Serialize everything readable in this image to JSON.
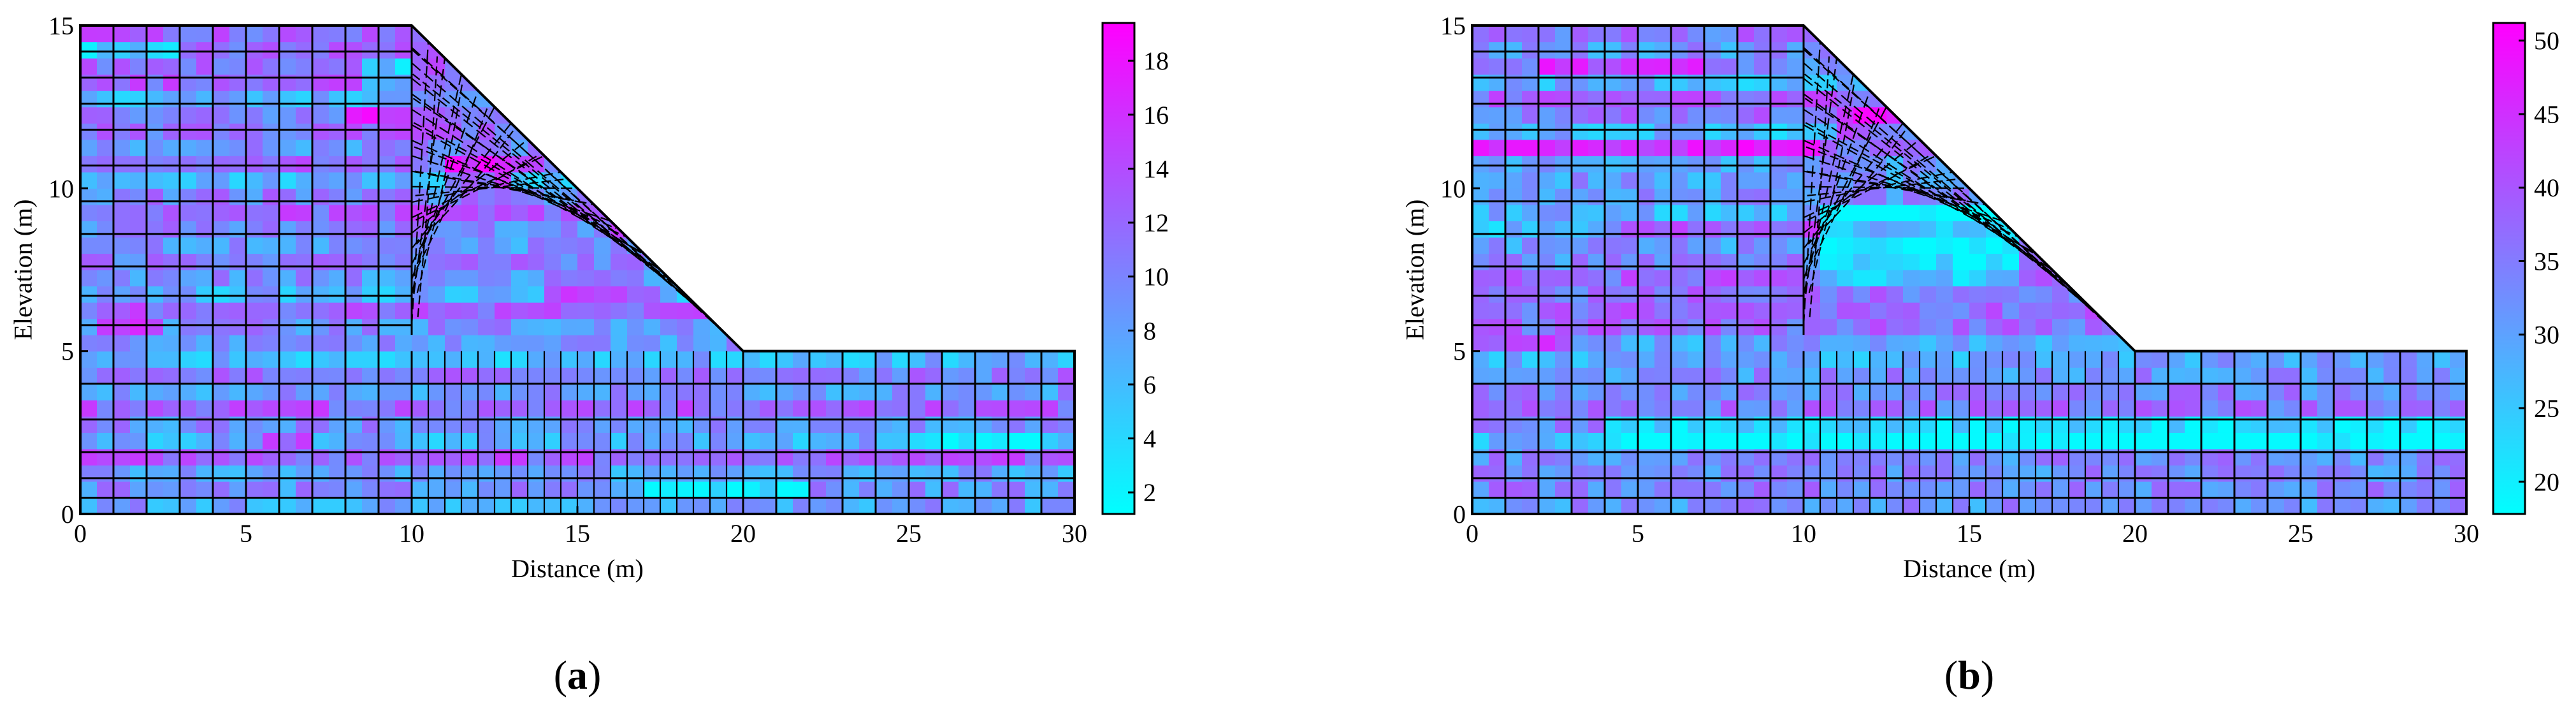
{
  "figure": {
    "panels": [
      {
        "label_open": "(",
        "label_letter": "a",
        "label_close": ")"
      },
      {
        "label_open": "(",
        "label_letter": "b",
        "label_close": ")"
      }
    ]
  },
  "chart_data": [
    {
      "type": "heatmap",
      "description_of_field": "random field over finite-element mesh of a slope",
      "xlabel": "Distance (m)",
      "ylabel": "Elevation (m)",
      "xlim": [
        0,
        30
      ],
      "ylim": [
        0,
        15
      ],
      "xticks": [
        0,
        5,
        10,
        15,
        20,
        25,
        30
      ],
      "yticks": [
        0,
        5,
        10,
        15
      ],
      "slope_geometry": {
        "crest": [
          [
            0,
            15
          ],
          [
            10,
            15
          ]
        ],
        "toe": [
          [
            20,
            5
          ],
          [
            30,
            5
          ]
        ],
        "base": [
          [
            0,
            0
          ],
          [
            30,
            0
          ]
        ]
      },
      "colorbar": {
        "min": 1.2,
        "max": 19.4,
        "ticks": [
          2,
          4,
          6,
          8,
          10,
          12,
          14,
          16,
          18
        ],
        "colormap": [
          "#00ffff",
          "#ff00ff"
        ]
      },
      "field_mean": 10,
      "high_zones": [
        [
          0.3,
          5.3,
          2,
          0.6
        ],
        [
          5.5,
          1.8,
          1.5,
          0.6
        ],
        [
          11,
          9.8,
          2,
          1.2
        ],
        [
          14,
          6.3,
          3.5,
          0.8
        ],
        [
          8,
          12.2,
          2,
          0.5
        ],
        [
          16,
          8.3,
          1,
          0.5
        ]
      ],
      "low_zones": [
        [
          8.5,
          13.2,
          1.5,
          0.6
        ],
        [
          0,
          14,
          3,
          0.6
        ],
        [
          17,
          0.3,
          5,
          0.6
        ],
        [
          25,
          2,
          4,
          0.6
        ]
      ]
    },
    {
      "type": "heatmap",
      "description_of_field": "random field over finite-element mesh of a slope",
      "xlabel": "Distance (m)",
      "ylabel": "Elevation (m)",
      "xlim": [
        0,
        30
      ],
      "ylim": [
        0,
        15
      ],
      "xticks": [
        0,
        5,
        10,
        15,
        20,
        25,
        30
      ],
      "yticks": [
        0,
        5,
        10,
        15
      ],
      "slope_geometry": {
        "crest": [
          [
            0,
            15
          ],
          [
            10,
            15
          ]
        ],
        "toe": [
          [
            20,
            5
          ],
          [
            30,
            5
          ]
        ],
        "base": [
          [
            0,
            0
          ],
          [
            30,
            0
          ]
        ]
      },
      "colorbar": {
        "min": 17.8,
        "max": 51.2,
        "ticks": [
          20,
          25,
          30,
          35,
          40,
          45,
          50
        ],
        "colormap": [
          "#00ffff",
          "#ff00ff"
        ]
      },
      "field_mean": 33,
      "high_zones": [
        [
          0,
          11,
          10.5,
          0.6
        ],
        [
          2,
          13.3,
          5,
          0.5
        ],
        [
          11,
          11.5,
          2,
          0.8
        ],
        [
          0,
          5,
          3,
          0.5
        ]
      ],
      "low_zones": [
        [
          10.5,
          7,
          6,
          2.5
        ],
        [
          4,
          2,
          26,
          1.2
        ],
        [
          0,
          8.3,
          4,
          0.5
        ]
      ]
    }
  ]
}
